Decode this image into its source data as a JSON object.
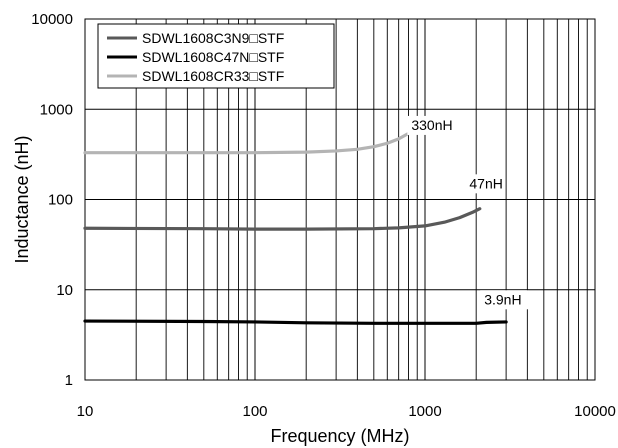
{
  "chart_data": {
    "type": "line",
    "xlabel": "Frequency (MHz)",
    "ylabel": "Inductance (nH)",
    "x_scale": "log",
    "y_scale": "log",
    "xlim": [
      10,
      10000
    ],
    "ylim": [
      1,
      10000
    ],
    "x_ticks": [
      "10",
      "100",
      "1000",
      "10000"
    ],
    "y_ticks": [
      "1",
      "10",
      "100",
      "1000",
      "10000"
    ],
    "grid": true,
    "legend_position": "top-left",
    "series": [
      {
        "name": "SDWL1608C3N9□STF",
        "color": "#595959",
        "points": [
          [
            10,
            48
          ],
          [
            50,
            47.5
          ],
          [
            100,
            47
          ],
          [
            200,
            47
          ],
          [
            500,
            47.5
          ],
          [
            700,
            48.5
          ],
          [
            1000,
            51
          ],
          [
            1300,
            56
          ],
          [
            1600,
            63
          ],
          [
            1900,
            72
          ],
          [
            2100,
            79
          ]
        ]
      },
      {
        "name": "SDWL1608C47N□STF",
        "color": "#000000",
        "points": [
          [
            10,
            4.5
          ],
          [
            50,
            4.45
          ],
          [
            100,
            4.4
          ],
          [
            200,
            4.3
          ],
          [
            500,
            4.25
          ],
          [
            1000,
            4.25
          ],
          [
            2000,
            4.25
          ],
          [
            2300,
            4.35
          ],
          [
            3000,
            4.4
          ]
        ]
      },
      {
        "name": "SDWL1608CR33□STF",
        "color": "#b4b4b4",
        "points": [
          [
            10,
            330
          ],
          [
            50,
            330
          ],
          [
            100,
            330
          ],
          [
            200,
            335
          ],
          [
            300,
            345
          ],
          [
            400,
            360
          ],
          [
            500,
            385
          ],
          [
            600,
            420
          ],
          [
            700,
            470
          ],
          [
            800,
            540
          ],
          [
            850,
            580
          ]
        ]
      }
    ],
    "annotations": [
      {
        "text": "330nH",
        "x": 820,
        "y": 590
      },
      {
        "text": "47nH",
        "x": 1800,
        "y": 133
      },
      {
        "text": "3.9nH",
        "x": 2200,
        "y": 6.9
      }
    ]
  }
}
